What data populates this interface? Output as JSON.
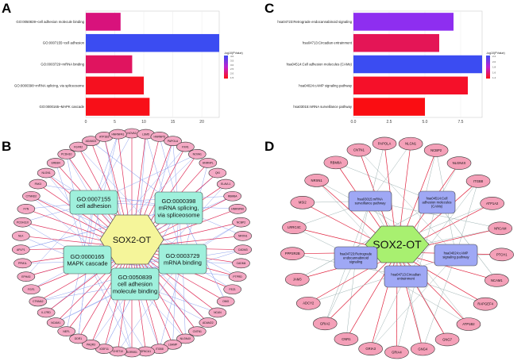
{
  "chart_data": [
    {
      "panel": "A",
      "type": "bar",
      "orientation": "horizontal",
      "categories": [
        "GO:0050839~cell adhesion molecule binding",
        "GO:0007155~cell adhesion",
        "GO:0003729~mRNA binding",
        "GO:0000398~mRNA splicing, via spliceosome",
        "GO:0000165~MAPK cascade"
      ],
      "values": [
        6,
        23,
        8,
        10,
        11
      ],
      "colors": [
        "#d8127c",
        "#3b4cf2",
        "#e0145f",
        "#f5101f",
        "#f80f18"
      ],
      "xlim": [
        0,
        23
      ],
      "xticks": [
        "0",
        "5",
        "10",
        "15",
        "20"
      ],
      "xtick_values": [
        0,
        5,
        10,
        15,
        20
      ],
      "legend_title": "-log10(PValue)",
      "legend_ticks": [
        "4.0",
        "3.5",
        "3.0",
        "2.5",
        "2.0",
        "1.5"
      ],
      "legend_colors": [
        "#3b4cf2",
        "#ff1010"
      ],
      "grid": true
    },
    {
      "panel": "C",
      "type": "bar",
      "orientation": "horizontal",
      "categories": [
        "hsa04723:Retrograde endocannabinoid signaling",
        "hsa04713:Circadian entrainment",
        "hsa04514:Cell adhesion molecules (CAMs)",
        "hsa04024:cAMP signaling pathway",
        "hsa03015:mRNA surveillance pathway"
      ],
      "values": [
        7,
        6,
        9,
        8,
        5
      ],
      "colors": [
        "#8e2ef0",
        "#e41556",
        "#3b4cf2",
        "#f51029",
        "#fa0d12"
      ],
      "xlim": [
        0,
        9
      ],
      "xticks": [
        "0.0",
        "2.5",
        "5.0",
        "7.5"
      ],
      "xtick_values": [
        0,
        2.5,
        5,
        7.5
      ],
      "legend_title": "-log10(PValue)",
      "legend_ticks": [
        "2.2",
        "2.0",
        "1.8",
        "1.6",
        "1.4"
      ],
      "legend_colors": [
        "#3b4cf2",
        "#ff1010"
      ],
      "grid": true
    }
  ],
  "panels": {
    "a": "A",
    "b": "B",
    "c": "C",
    "d": "D"
  },
  "network_b": {
    "center": "SOX2-OT",
    "terms": [
      [
        "GO:0007155",
        "cell adhesion"
      ],
      [
        "GO:0000398",
        "mRNA splicing,",
        "via spliceosome"
      ],
      [
        "GO:0000165",
        "MAPK cascade"
      ],
      [
        "GO:0003729",
        "mRNA binding"
      ],
      [
        "GO:0050839",
        "cell adhesion",
        "molecule binding"
      ]
    ],
    "genes": [
      "NOVA2",
      "LSM5",
      "HNRNPD",
      "PAPOLA",
      "FXR1",
      "NOVA1",
      "HNRNPL",
      "QKI",
      "ELAVL1",
      "RBM8A",
      "HNRNPA0",
      "NCBP2",
      "NRXN1",
      "CADM3",
      "CADM4",
      "PTPRD",
      "FEZ1",
      "OMG",
      "NCAN",
      "ADAM22",
      "CNTN1",
      "NLGN4X",
      "LSAMP",
      "ITGB8",
      "SPACA1",
      "SORBS1",
      "CHST10",
      "IGSF11",
      "PAQR3",
      "DDR1",
      "NEFL",
      "NCAM1",
      "IL17RD",
      "CTNNA2",
      "FGF1",
      "EPHA3",
      "PPM1L",
      "APLP1",
      "NLK",
      "PCDH11X",
      "FYN",
      "CTNND2",
      "PAK3",
      "NLGN1",
      "ERBB4",
      "PCDH10",
      "FGFR2",
      "ADAM23",
      "ATP1B3",
      "HNRNPA1"
    ],
    "colors": {
      "node": "#f4a9c4",
      "term": "#9ff0dc",
      "center": "#f5f59a",
      "gene_edge": "#e0305a",
      "term_edge": "#8fa2ee"
    }
  },
  "network_d": {
    "center": "SOX2-OT",
    "terms": [
      [
        "hsa03015:mRNA",
        "surveillance pathway"
      ],
      [
        "hsa04514:Cell",
        "adhesion molecules",
        "(CAMs)"
      ],
      [
        "hsa04723:Retrograde",
        "endocannabinoid",
        "signaling"
      ],
      [
        "hsa04024:cAMP",
        "signaling pathway"
      ],
      [
        "hsa04713:Circadian",
        "entrainment"
      ]
    ],
    "genes": [
      "NLGN1",
      "NCBP2",
      "NLGN4X",
      "ITGB8",
      "ATP1A2",
      "NRCAM",
      "PTCH1",
      "NCAM1",
      "RAPGEF4",
      "ATP1B2",
      "GNG7",
      "GNG4",
      "GRIA4",
      "GRIA3",
      "CNR1",
      "GRIA2",
      "ADCY2",
      "JAM3",
      "PPP2R2B",
      "LRRC4C",
      "MSI2",
      "NRXN1",
      "RBM8A",
      "CNTN1",
      "PAPOLA"
    ],
    "colors": {
      "node": "#f4a0b8",
      "term": "#9fa8f5",
      "center": "#a8f070",
      "gene_edge": "#e0203c",
      "term_edge": "#9fb3b3"
    }
  }
}
